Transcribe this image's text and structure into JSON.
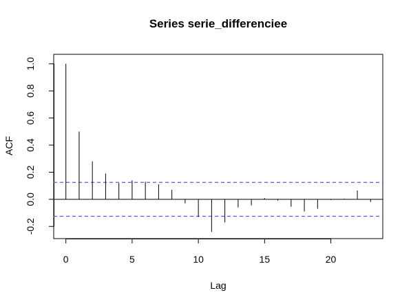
{
  "chart_data": {
    "type": "bar",
    "title": "Series  serie_differenciee",
    "xlabel": "Lag",
    "ylabel": "ACF",
    "xlim": [
      -0.92,
      23.92
    ],
    "ylim": [
      -0.29,
      1.07
    ],
    "x_ticks": [
      0,
      5,
      10,
      15,
      20
    ],
    "x_tick_labels": [
      "0",
      "5",
      "10",
      "15",
      "20"
    ],
    "y_ticks": [
      -0.2,
      0.0,
      0.2,
      0.4,
      0.6,
      0.8,
      1.0
    ],
    "y_tick_labels": [
      "-0.2",
      "0.0",
      "0.2",
      "0.4",
      "0.6",
      "0.8",
      "1.0"
    ],
    "grid": false,
    "confidence_bound": 0.125,
    "confidence_color": "#5555ff",
    "line_color": "#000000",
    "series": [
      {
        "lags": [
          0,
          1,
          2,
          3,
          4,
          5,
          6,
          7,
          8,
          9,
          10,
          11,
          12,
          13,
          14,
          15,
          16,
          17,
          18,
          19,
          20,
          21,
          22,
          23
        ],
        "values": [
          1.0,
          0.5,
          0.28,
          0.19,
          0.12,
          0.14,
          0.13,
          0.11,
          0.07,
          -0.03,
          -0.13,
          -0.24,
          -0.17,
          -0.06,
          -0.045,
          0.01,
          -0.01,
          -0.055,
          -0.09,
          -0.07,
          -0.005,
          0.005,
          0.065,
          -0.02
        ]
      }
    ]
  }
}
